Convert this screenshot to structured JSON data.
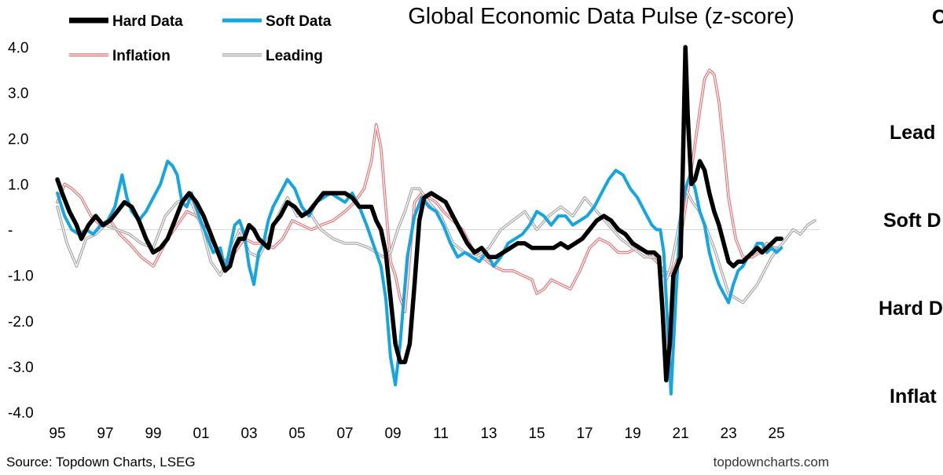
{
  "chart_data": {
    "type": "line",
    "title": "Global Economic Data Pulse (z-score)",
    "ylabel": "",
    "xlabel": "",
    "x_range": [
      1995,
      2026.8
    ],
    "ylim": [
      -4.0,
      4.0
    ],
    "y_ticks": [
      {
        "value": 4.0,
        "label": "4.0"
      },
      {
        "value": 3.0,
        "label": "3.0"
      },
      {
        "value": 2.0,
        "label": "2.0"
      },
      {
        "value": 1.0,
        "label": "1.0"
      },
      {
        "value": 0.0,
        "label": "-"
      },
      {
        "value": -1.0,
        "label": "-1.0"
      },
      {
        "value": -2.0,
        "label": "-2.0"
      },
      {
        "value": -3.0,
        "label": "-3.0"
      },
      {
        "value": -4.0,
        "label": "-4.0"
      }
    ],
    "x_ticks": [
      {
        "value": 1995,
        "label": "95"
      },
      {
        "value": 1997,
        "label": "97"
      },
      {
        "value": 1999,
        "label": "99"
      },
      {
        "value": 2001,
        "label": "01"
      },
      {
        "value": 2003,
        "label": "03"
      },
      {
        "value": 2005,
        "label": "05"
      },
      {
        "value": 2007,
        "label": "07"
      },
      {
        "value": 2009,
        "label": "09"
      },
      {
        "value": 2011,
        "label": "11"
      },
      {
        "value": 2013,
        "label": "13"
      },
      {
        "value": 2015,
        "label": "15"
      },
      {
        "value": 2017,
        "label": "17"
      },
      {
        "value": 2019,
        "label": "19"
      },
      {
        "value": 2021,
        "label": "21"
      },
      {
        "value": 2023,
        "label": "23"
      },
      {
        "value": 2025,
        "label": "25"
      }
    ],
    "series": [
      {
        "name": "Inflation",
        "style": "double",
        "color": "#e8777a",
        "x": [
          1995.0,
          1995.3,
          1995.6,
          1996.0,
          1996.4,
          1996.8,
          1997.2,
          1997.6,
          1998.0,
          1998.5,
          1999.0,
          1999.3,
          1999.6,
          2000.0,
          2000.4,
          2000.8,
          2001.2,
          2001.6,
          2002.0,
          2002.4,
          2002.8,
          2003.2,
          2003.6,
          2004.0,
          2004.4,
          2004.8,
          2005.2,
          2005.6,
          2006.0,
          2006.5,
          2007.0,
          2007.4,
          2007.8,
          2008.1,
          2008.3,
          2008.5,
          2008.7,
          2008.9,
          2009.1,
          2009.3,
          2009.5,
          2009.7,
          2009.9,
          2010.2,
          2010.5,
          2010.8,
          2011.1,
          2011.5,
          2011.9,
          2012.3,
          2012.7,
          2013.2,
          2013.6,
          2014.0,
          2014.4,
          2014.8,
          2015.0,
          2015.3,
          2015.6,
          2016.0,
          2016.4,
          2016.8,
          2017.2,
          2017.6,
          2018.0,
          2018.4,
          2018.8,
          2019.2,
          2019.6,
          2020.0,
          2020.3,
          2020.6,
          2020.9,
          2021.2,
          2021.5,
          2021.8,
          2022.0,
          2022.2,
          2022.4,
          2022.6,
          2022.8,
          2023.0,
          2023.3,
          2023.6,
          2024.0,
          2024.3,
          2024.6,
          2024.9,
          2025.2
        ],
        "y": [
          0.6,
          1.0,
          0.9,
          0.7,
          0.3,
          0.1,
          0.2,
          -0.1,
          -0.3,
          -0.6,
          -0.8,
          -0.5,
          -0.2,
          0.1,
          0.4,
          0.3,
          0.0,
          -0.4,
          -0.7,
          -0.5,
          -0.2,
          -0.3,
          -0.3,
          -0.4,
          -0.2,
          0.2,
          0.1,
          0.0,
          0.1,
          0.2,
          0.4,
          0.6,
          0.9,
          1.5,
          2.3,
          1.8,
          0.5,
          -0.7,
          -1.0,
          -1.5,
          -1.8,
          -0.6,
          0.6,
          0.8,
          0.7,
          0.6,
          0.4,
          0.2,
          0.0,
          -0.4,
          -0.6,
          -0.8,
          -0.9,
          -0.9,
          -1.0,
          -1.1,
          -1.4,
          -1.3,
          -1.1,
          -1.2,
          -1.3,
          -0.9,
          -0.4,
          -0.2,
          -0.3,
          -0.5,
          -0.5,
          -0.4,
          -0.5,
          -0.7,
          -0.9,
          -1.0,
          -0.6,
          0.5,
          1.5,
          2.6,
          3.3,
          3.5,
          3.4,
          2.8,
          1.8,
          0.7,
          -0.2,
          -0.6,
          -0.6,
          -0.5,
          -0.3,
          -0.4,
          -0.4
        ]
      },
      {
        "name": "Leading",
        "style": "double",
        "color": "#a6a6a6",
        "x": [
          1995.0,
          1995.4,
          1995.8,
          1996.2,
          1996.6,
          1997.0,
          1997.5,
          1998.0,
          1998.5,
          1999.0,
          1999.5,
          2000.0,
          2000.5,
          2001.0,
          2001.4,
          2001.8,
          2002.2,
          2002.6,
          2003.0,
          2003.4,
          2003.8,
          2004.2,
          2004.6,
          2005.0,
          2005.5,
          2006.0,
          2006.5,
          2007.0,
          2007.5,
          2008.0,
          2008.3,
          2008.6,
          2008.9,
          2009.2,
          2009.5,
          2009.8,
          2010.1,
          2010.5,
          2011.0,
          2011.5,
          2012.0,
          2012.5,
          2013.0,
          2013.5,
          2014.0,
          2014.5,
          2015.0,
          2015.5,
          2016.0,
          2016.5,
          2017.0,
          2017.5,
          2018.0,
          2018.5,
          2019.0,
          2019.5,
          2020.0,
          2020.2,
          2020.4,
          2020.6,
          2020.9,
          2021.2,
          2021.5,
          2021.8,
          2022.1,
          2022.4,
          2022.7,
          2023.0,
          2023.3,
          2023.6,
          2023.9,
          2024.2,
          2024.5,
          2024.8,
          2025.1,
          2025.4,
          2025.7,
          2026.0,
          2026.3,
          2026.6
        ],
        "y": [
          0.5,
          -0.3,
          -0.8,
          -0.2,
          -0.1,
          0.1,
          0.0,
          -0.1,
          -0.3,
          -0.4,
          0.3,
          0.6,
          0.7,
          0.1,
          -0.7,
          -1.0,
          -0.5,
          0.0,
          -0.5,
          -0.6,
          -0.2,
          0.3,
          0.7,
          0.3,
          0.4,
          0.0,
          -0.2,
          -0.3,
          -0.3,
          -0.4,
          -0.5,
          -0.6,
          -0.5,
          0.0,
          0.4,
          0.9,
          0.9,
          0.6,
          0.3,
          -0.3,
          -0.5,
          -0.6,
          -0.4,
          0.0,
          0.2,
          0.4,
          0.0,
          0.3,
          0.5,
          0.3,
          0.7,
          0.4,
          0.1,
          -0.2,
          -0.4,
          -0.6,
          -0.6,
          -0.9,
          -1.1,
          -0.8,
          0.0,
          0.9,
          0.6,
          0.4,
          0.0,
          -0.4,
          -0.9,
          -1.4,
          -1.5,
          -1.6,
          -1.4,
          -1.2,
          -0.9,
          -0.6,
          -0.4,
          -0.2,
          0.0,
          -0.1,
          0.1,
          0.2
        ]
      },
      {
        "name": "Soft Data",
        "style": "solid",
        "color": "#15a6e0",
        "x": [
          1995.0,
          1995.3,
          1995.6,
          1995.9,
          1996.2,
          1996.5,
          1996.8,
          1997.1,
          1997.4,
          1997.7,
          1997.9,
          1998.1,
          1998.4,
          1998.7,
          1999.0,
          1999.3,
          1999.6,
          1999.8,
          2000.0,
          2000.2,
          2000.4,
          2000.6,
          2000.9,
          2001.2,
          2001.5,
          2001.8,
          2002.0,
          2002.2,
          2002.4,
          2002.6,
          2002.8,
          2003.0,
          2003.2,
          2003.4,
          2003.6,
          2003.8,
          2004.0,
          2004.3,
          2004.6,
          2004.9,
          2005.2,
          2005.5,
          2005.8,
          2006.1,
          2006.4,
          2006.7,
          2007.0,
          2007.3,
          2007.6,
          2007.9,
          2008.1,
          2008.3,
          2008.5,
          2008.7,
          2008.9,
          2009.1,
          2009.3,
          2009.6,
          2009.9,
          2010.2,
          2010.5,
          2010.8,
          2011.1,
          2011.4,
          2011.7,
          2012.0,
          2012.3,
          2012.6,
          2012.9,
          2013.2,
          2013.5,
          2013.8,
          2014.1,
          2014.4,
          2014.7,
          2015.0,
          2015.3,
          2015.6,
          2015.9,
          2016.2,
          2016.5,
          2016.8,
          2017.1,
          2017.4,
          2017.7,
          2018.0,
          2018.3,
          2018.6,
          2018.9,
          2019.2,
          2019.5,
          2019.8,
          2020.0,
          2020.15,
          2020.3,
          2020.45,
          2020.6,
          2020.8,
          2021.0,
          2021.2,
          2021.4,
          2021.6,
          2021.8,
          2022.0,
          2022.2,
          2022.4,
          2022.6,
          2022.8,
          2023.0,
          2023.2,
          2023.4,
          2023.6,
          2023.8,
          2024.0,
          2024.2,
          2024.4,
          2024.6,
          2024.8,
          2025.0,
          2025.2
        ],
        "y": [
          0.8,
          0.3,
          0.0,
          -0.1,
          0.0,
          -0.1,
          0.1,
          0.2,
          0.5,
          1.2,
          0.7,
          0.4,
          0.2,
          0.4,
          0.7,
          1.0,
          1.5,
          1.4,
          1.2,
          0.6,
          0.5,
          0.8,
          0.3,
          -0.1,
          -0.5,
          -0.4,
          -0.9,
          -0.4,
          0.1,
          0.2,
          -0.1,
          -0.8,
          -1.2,
          -0.5,
          -0.3,
          0.2,
          0.5,
          0.8,
          1.1,
          0.9,
          0.5,
          0.3,
          0.6,
          0.7,
          0.8,
          0.7,
          0.6,
          0.8,
          0.5,
          0.1,
          -0.2,
          -0.5,
          -0.8,
          -1.5,
          -2.8,
          -3.4,
          -2.5,
          -0.6,
          0.3,
          0.7,
          0.5,
          0.4,
          0.1,
          -0.3,
          -0.6,
          -0.5,
          -0.6,
          -0.7,
          -0.5,
          -0.8,
          -0.6,
          -0.3,
          -0.2,
          -0.1,
          0.1,
          0.4,
          0.3,
          0.1,
          0.3,
          0.3,
          0.1,
          0.2,
          0.3,
          0.5,
          0.8,
          1.1,
          1.3,
          1.2,
          0.9,
          0.7,
          0.4,
          0.1,
          0.0,
          0.0,
          -0.5,
          -2.0,
          -3.6,
          -1.5,
          0.3,
          0.9,
          1.2,
          0.9,
          0.4,
          0.1,
          -0.5,
          -0.9,
          -1.2,
          -1.4,
          -1.6,
          -1.2,
          -0.9,
          -0.8,
          -0.6,
          -0.5,
          -0.3,
          -0.3,
          -0.5,
          -0.4,
          -0.5,
          -0.4
        ]
      },
      {
        "name": "Hard Data",
        "style": "solid",
        "color": "#000000",
        "x": [
          1995.0,
          1995.2,
          1995.5,
          1995.8,
          1996.0,
          1996.3,
          1996.6,
          1996.9,
          1997.2,
          1997.5,
          1997.8,
          1998.1,
          1998.4,
          1998.7,
          1999.0,
          1999.3,
          1999.6,
          1999.9,
          2000.2,
          2000.5,
          2000.8,
          2001.1,
          2001.4,
          2001.7,
          2002.0,
          2002.2,
          2002.4,
          2002.6,
          2002.8,
          2003.0,
          2003.2,
          2003.4,
          2003.6,
          2003.8,
          2004.0,
          2004.3,
          2004.6,
          2004.9,
          2005.2,
          2005.5,
          2005.8,
          2006.1,
          2006.4,
          2006.7,
          2007.0,
          2007.3,
          2007.6,
          2007.9,
          2008.1,
          2008.3,
          2008.5,
          2008.7,
          2008.9,
          2009.1,
          2009.3,
          2009.5,
          2009.7,
          2009.9,
          2010.1,
          2010.3,
          2010.6,
          2010.9,
          2011.2,
          2011.5,
          2011.8,
          2012.1,
          2012.4,
          2012.7,
          2013.0,
          2013.3,
          2013.6,
          2013.9,
          2014.2,
          2014.5,
          2014.8,
          2015.1,
          2015.4,
          2015.7,
          2016.0,
          2016.3,
          2016.6,
          2016.9,
          2017.2,
          2017.5,
          2017.8,
          2018.1,
          2018.4,
          2018.7,
          2019.0,
          2019.3,
          2019.6,
          2019.9,
          2020.1,
          2020.25,
          2020.4,
          2020.55,
          2020.7,
          2020.85,
          2021.0,
          2021.1,
          2021.2,
          2021.3,
          2021.45,
          2021.6,
          2021.8,
          2022.0,
          2022.2,
          2022.4,
          2022.6,
          2022.8,
          2023.0,
          2023.2,
          2023.4,
          2023.6,
          2023.8,
          2024.0,
          2024.2,
          2024.4,
          2024.6,
          2024.8,
          2025.0,
          2025.2
        ],
        "y": [
          1.1,
          0.8,
          0.4,
          0.1,
          -0.2,
          0.1,
          0.3,
          0.1,
          0.2,
          0.4,
          0.6,
          0.5,
          0.2,
          -0.2,
          -0.5,
          -0.4,
          -0.2,
          0.2,
          0.6,
          0.8,
          0.6,
          0.3,
          -0.1,
          -0.5,
          -0.9,
          -0.8,
          -0.4,
          -0.2,
          -0.2,
          0.1,
          0.0,
          -0.2,
          -0.3,
          -0.4,
          0.1,
          0.3,
          0.6,
          0.5,
          0.3,
          0.4,
          0.6,
          0.8,
          0.8,
          0.8,
          0.8,
          0.7,
          0.5,
          0.5,
          0.5,
          0.2,
          0.0,
          -0.5,
          -1.5,
          -2.5,
          -2.9,
          -2.9,
          -2.5,
          -1.2,
          0.2,
          0.7,
          0.8,
          0.7,
          0.6,
          0.3,
          0.0,
          -0.3,
          -0.5,
          -0.4,
          -0.6,
          -0.6,
          -0.5,
          -0.4,
          -0.3,
          -0.3,
          -0.4,
          -0.4,
          -0.4,
          -0.4,
          -0.3,
          -0.4,
          -0.3,
          -0.2,
          0.0,
          0.2,
          0.3,
          0.2,
          0.0,
          -0.1,
          -0.3,
          -0.4,
          -0.5,
          -0.5,
          -0.6,
          -1.8,
          -3.3,
          -2.5,
          -1.0,
          -0.8,
          -0.6,
          1.5,
          4.0,
          2.5,
          1.0,
          1.1,
          1.5,
          1.3,
          0.8,
          0.4,
          0.1,
          -0.3,
          -0.7,
          -0.8,
          -0.7,
          -0.7,
          -0.6,
          -0.5,
          -0.4,
          -0.5,
          -0.4,
          -0.3,
          -0.2,
          -0.2
        ]
      }
    ],
    "legend": [
      {
        "name": "Hard Data",
        "style": "solid",
        "color": "#000000"
      },
      {
        "name": "Soft Data",
        "style": "solid",
        "color": "#15a6e0"
      },
      {
        "name": "Inflation",
        "style": "double",
        "color": "#e8777a"
      },
      {
        "name": "Leading",
        "style": "double",
        "color": "#a6a6a6"
      }
    ],
    "source": "Source: Topdown Charts, LSEG",
    "website": "topdowncharts.com",
    "right_panel_labels": [
      "Lead",
      "Soft D",
      "Hard D",
      "Inflat"
    ],
    "right_panel_partial_title": "C"
  }
}
